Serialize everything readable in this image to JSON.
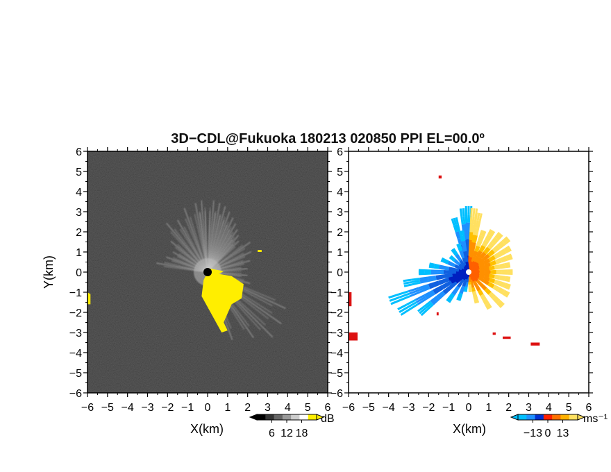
{
  "figure": {
    "title": "3D−CDL@Fukuoka 180213 020850 PPI EL=00.0º"
  },
  "chart_data": [
    {
      "type": "heatmap",
      "panel": "left",
      "quantity": "signal-to-noise ratio",
      "xlabel": "X(km)",
      "ylabel": "Y(km)",
      "xlim": [
        -6,
        6
      ],
      "ylim": [
        -6,
        6
      ],
      "x_ticks": [
        "−6",
        "−5",
        "−4",
        "−3",
        "−2",
        "−1",
        "0",
        "1",
        "2",
        "3",
        "4",
        "5",
        "6"
      ],
      "y_ticks": [
        "−6",
        "−5",
        "−4",
        "−3",
        "−2",
        "−1",
        "0",
        "1",
        "2",
        "3",
        "4",
        "5",
        "6"
      ],
      "colormap": "grayscale, saturated values shown in yellow",
      "background_color": "#1c1c1c",
      "saturation_color": "#ffee00",
      "rays_azimuth_deg": [
        -80,
        -70,
        -60,
        -50,
        -40,
        -30,
        -20,
        -10,
        -5,
        0,
        5,
        10,
        15,
        20,
        25,
        30,
        35,
        40,
        45,
        55,
        65,
        75,
        85,
        95,
        105,
        115,
        125,
        135,
        145,
        160,
        175
      ],
      "ray_lengths_km": [
        2.6,
        2.2,
        2.0,
        2.4,
        3.2,
        3.0,
        3.4,
        3.5,
        3.6,
        3.8,
        3.6,
        3.5,
        3.4,
        3.2,
        3.0,
        2.8,
        2.6,
        2.4,
        2.2,
        2.6,
        2.4,
        2.2,
        2.0,
        2.0,
        2.2,
        4.3,
        4.5,
        4.6,
        4.0,
        3.6,
        1.2
      ]
    },
    {
      "type": "heatmap",
      "panel": "right",
      "quantity": "radial velocity",
      "xlabel": "X(km)",
      "xlim": [
        -6,
        6
      ],
      "ylim": [
        -6,
        6
      ],
      "x_ticks": [
        "−6",
        "−5",
        "−4",
        "−3",
        "−2",
        "−1",
        "0",
        "1",
        "2",
        "3",
        "4",
        "5",
        "6"
      ],
      "y_ticks": [
        "−6",
        "−5",
        "−4",
        "−3",
        "−2",
        "−1",
        "0",
        "1",
        "2",
        "3",
        "4",
        "5",
        "6"
      ],
      "colormap": "blue (negative) to red/orange/yellow (positive)",
      "negative_colors": [
        "#00bfff",
        "#1e90ff",
        "#1060e0",
        "#0020c0"
      ],
      "positive_colors": [
        "#ff2000",
        "#ff6000",
        "#ff9000",
        "#ffc000",
        "#ffe060"
      ],
      "outlier_color": "#dd1111",
      "rays_azimuth_deg": [
        -15,
        -5,
        0,
        5,
        10,
        20,
        30,
        40,
        50,
        60,
        70,
        80,
        90,
        100,
        110,
        120,
        135,
        150,
        165,
        175,
        190,
        200,
        215,
        230,
        240,
        250,
        260,
        270,
        280,
        295,
        310,
        325,
        340,
        350
      ],
      "ray_lengths_km": [
        2.8,
        3.2,
        3.3,
        3.2,
        3.0,
        2.2,
        2.4,
        2.5,
        2.6,
        2.4,
        2.3,
        2.1,
        2.2,
        2.1,
        2.2,
        2.3,
        2.4,
        2.1,
        1.6,
        1.0,
        1.0,
        1.5,
        1.8,
        3.2,
        4.0,
        4.2,
        3.3,
        2.5,
        2.0,
        1.5,
        1.2,
        1.4,
        1.5,
        2.1
      ]
    }
  ],
  "colorbars": [
    {
      "unit": "dB",
      "tick_labels": [
        "6",
        "12",
        "18"
      ],
      "colors": [
        "#000000",
        "#333333",
        "#666666",
        "#999999",
        "#cccccc",
        "#ffffff",
        "#ffee00"
      ]
    },
    {
      "unit": "ms⁻¹",
      "tick_labels": [
        "−13",
        "0",
        "13"
      ],
      "colors": [
        "#00bfff",
        "#1e90ff",
        "#0030d0",
        "#ff2000",
        "#ff7000",
        "#ffb000",
        "#ffe060"
      ]
    }
  ]
}
